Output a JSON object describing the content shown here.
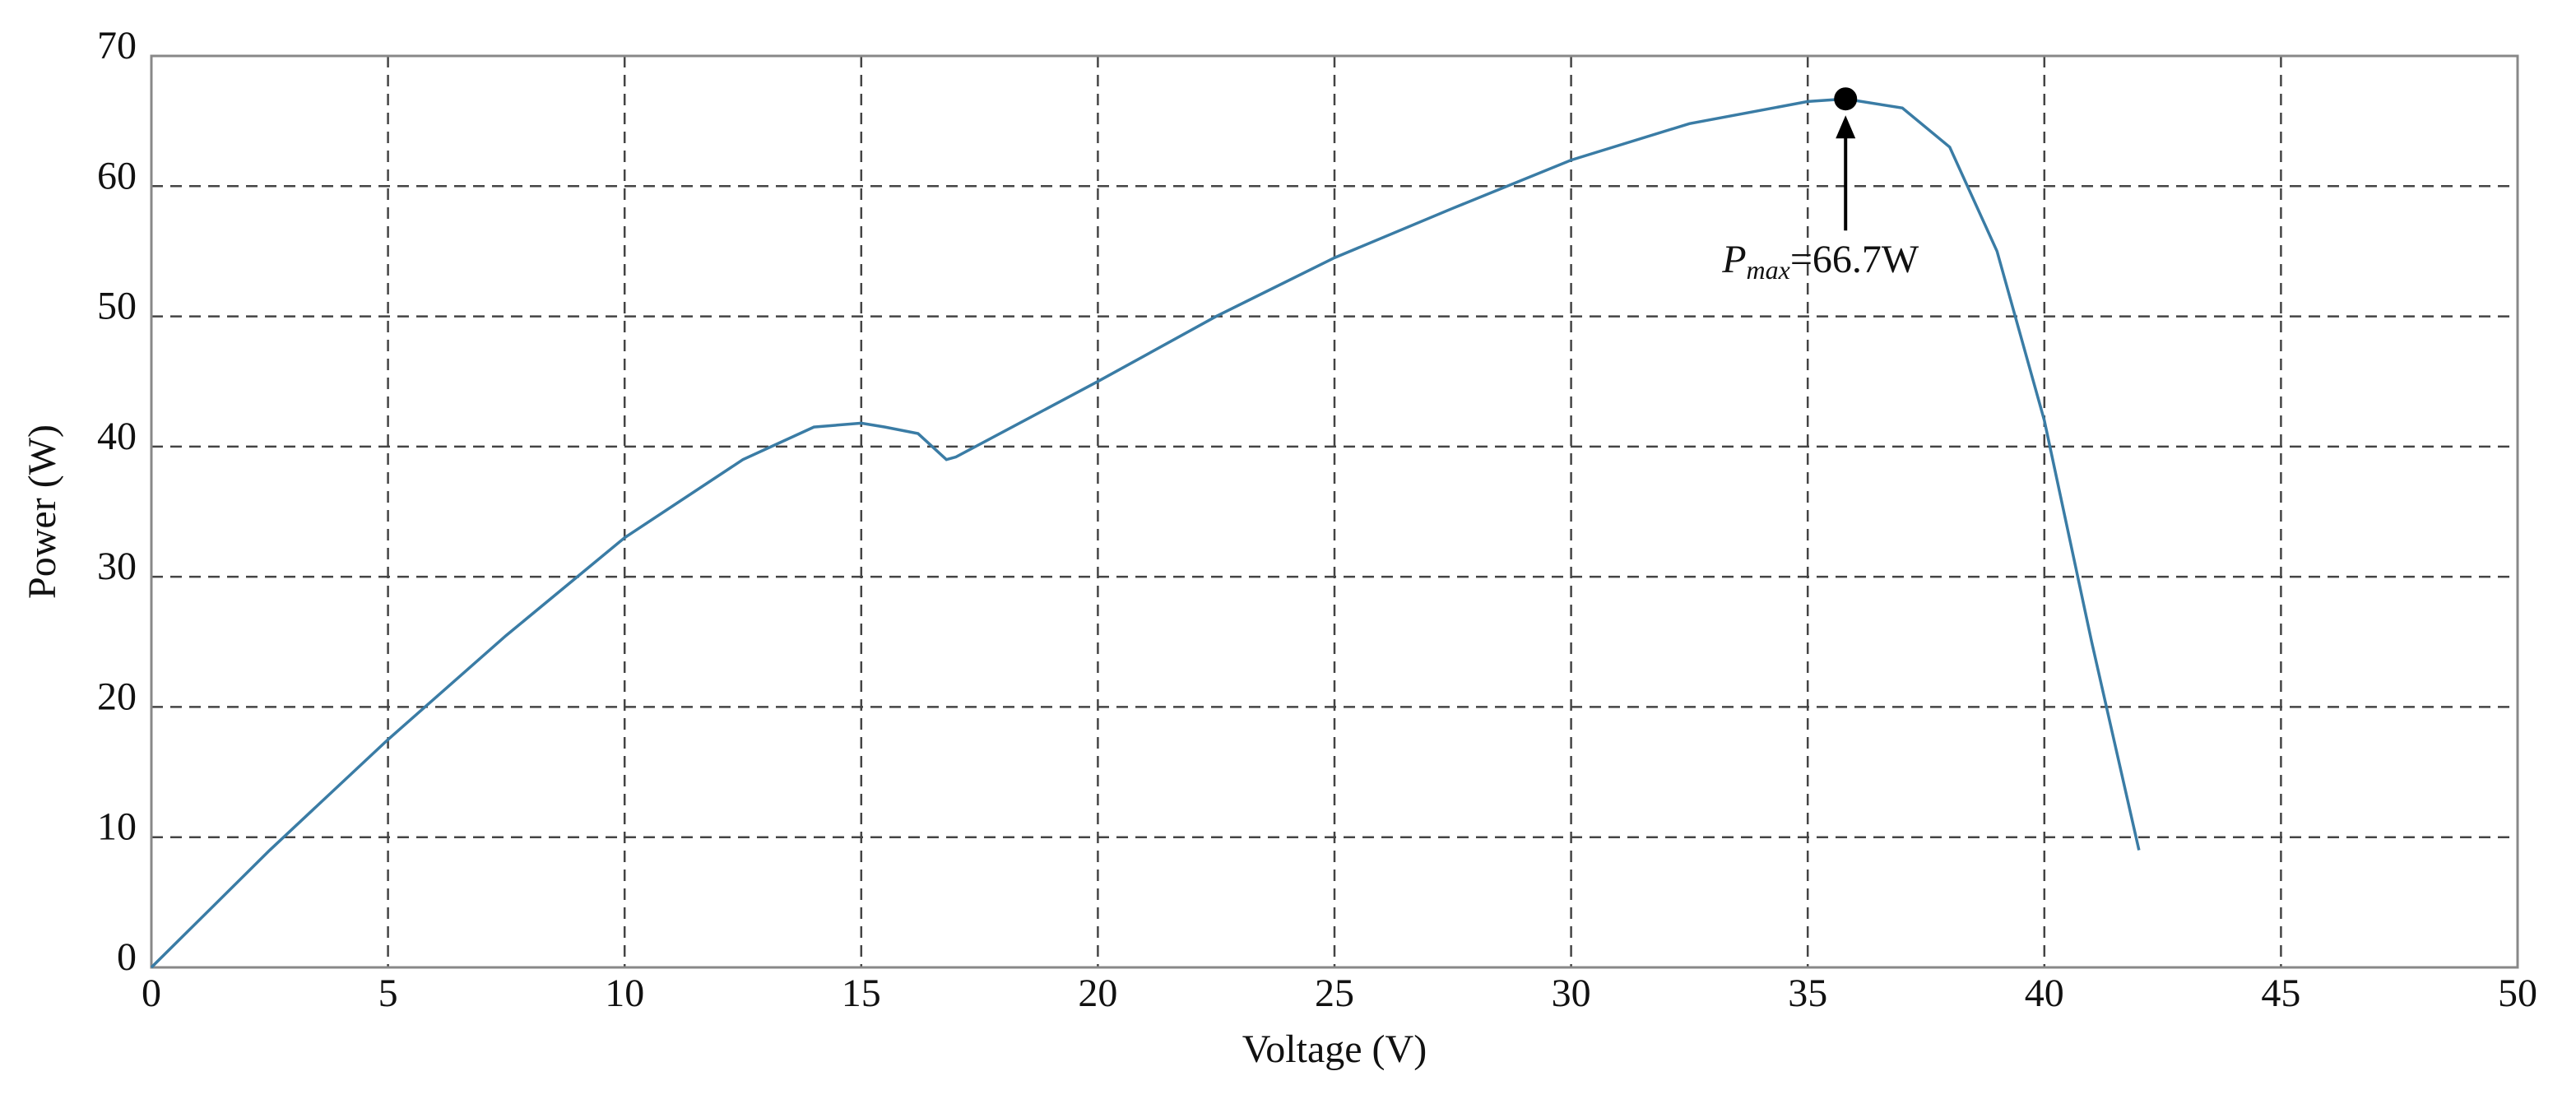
{
  "chart_data": {
    "type": "line",
    "xlabel": "Voltage (V)",
    "ylabel": "Power (W)",
    "x": [
      0,
      2.5,
      5,
      7.5,
      10,
      12.5,
      14,
      15,
      15.5,
      16.2,
      16.8,
      17,
      20,
      22.5,
      25,
      27.5,
      30,
      32.5,
      35,
      35.8,
      37,
      38,
      39,
      40,
      41,
      42
    ],
    "series": [
      {
        "color": "#3a7ca5",
        "values": [
          0,
          9,
          17.5,
          25.5,
          33,
          39,
          41.5,
          41.8,
          41.5,
          41,
          39,
          39.2,
          45,
          50,
          54.5,
          58.3,
          62,
          64.8,
          66.5,
          66.7,
          66,
          63,
          55,
          42,
          25,
          9
        ]
      }
    ],
    "annotation": {
      "label": "P",
      "subscript": "max",
      "text": "=66.7W",
      "x": 35.8,
      "y": 66.7
    },
    "xlim": [
      0,
      50
    ],
    "xticks": [
      0,
      5,
      10,
      15,
      20,
      25,
      30,
      35,
      40,
      45,
      50
    ],
    "ylim": [
      0,
      70
    ],
    "yticks": [
      0,
      10,
      20,
      30,
      40,
      50,
      60,
      70
    ],
    "grid": true
  }
}
